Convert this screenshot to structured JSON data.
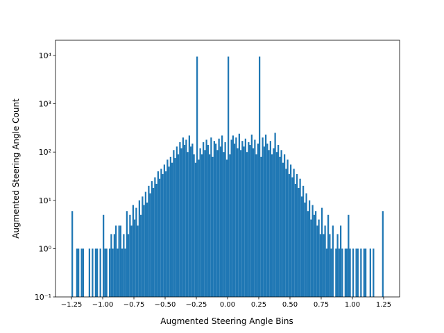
{
  "chart_data": {
    "type": "histogram",
    "xlabel": "Augmented Steering Angle Bins",
    "ylabel": "Augmented Steering Angle Count",
    "color": "#1f77b4",
    "log_scale_y": true,
    "bins": [
      -1.25,
      -1.2375,
      -1.225,
      -1.2125,
      -1.2,
      -1.1875,
      -1.175,
      -1.1625,
      -1.15,
      -1.1375,
      -1.125,
      -1.1125,
      -1.1,
      -1.0875,
      -1.075,
      -1.0625,
      -1.05,
      -1.0375,
      -1.025,
      -1.0125,
      -1,
      -0.9875,
      -0.975,
      -0.9625,
      -0.95,
      -0.9375,
      -0.925,
      -0.9125,
      -0.9,
      -0.8875,
      -0.875,
      -0.8625,
      -0.85,
      -0.8375,
      -0.825,
      -0.8125,
      -0.8,
      -0.7875,
      -0.775,
      -0.7625,
      -0.75,
      -0.7375,
      -0.725,
      -0.7125,
      -0.7,
      -0.6875,
      -0.675,
      -0.6625,
      -0.65,
      -0.6375,
      -0.625,
      -0.6125,
      -0.6,
      -0.5875,
      -0.575,
      -0.5625,
      -0.55,
      -0.5375,
      -0.525,
      -0.5125,
      -0.5,
      -0.4875,
      -0.475,
      -0.4625,
      -0.45,
      -0.4375,
      -0.425,
      -0.4125,
      -0.4,
      -0.3875,
      -0.375,
      -0.3625,
      -0.35,
      -0.3375,
      -0.325,
      -0.3125,
      -0.3,
      -0.2875,
      -0.275,
      -0.2625,
      -0.25,
      -0.2375,
      -0.225,
      -0.2125,
      -0.2,
      -0.1875,
      -0.175,
      -0.1625,
      -0.15,
      -0.1375,
      -0.125,
      -0.1125,
      -0.1,
      -0.0875,
      -0.075,
      -0.0625,
      -0.05,
      -0.0375,
      -0.025,
      -0.0125,
      0,
      0.0125,
      0.025,
      0.0375,
      0.05,
      0.0625,
      0.075,
      0.0875,
      0.1,
      0.1125,
      0.125,
      0.1375,
      0.15,
      0.1625,
      0.175,
      0.1875,
      0.2,
      0.2125,
      0.225,
      0.2375,
      0.25,
      0.2625,
      0.275,
      0.2875,
      0.3,
      0.3125,
      0.325,
      0.3375,
      0.35,
      0.3625,
      0.375,
      0.3875,
      0.4,
      0.4125,
      0.425,
      0.4375,
      0.45,
      0.4625,
      0.475,
      0.4875,
      0.5,
      0.5125,
      0.525,
      0.5375,
      0.55,
      0.5625,
      0.575,
      0.5875,
      0.6,
      0.6125,
      0.625,
      0.6375,
      0.65,
      0.6625,
      0.675,
      0.6875,
      0.7,
      0.7125,
      0.725,
      0.7375,
      0.75,
      0.7625,
      0.775,
      0.7875,
      0.8,
      0.8125,
      0.825,
      0.8375,
      0.85,
      0.8625,
      0.875,
      0.8875,
      0.9,
      0.9125,
      0.925,
      0.9375,
      0.95,
      0.9625,
      0.975,
      0.9875,
      1,
      1.0125,
      1.025,
      1.0375,
      1.05,
      1.0625,
      1.075,
      1.0875,
      1.1,
      1.1125,
      1.125,
      1.1375,
      1.15,
      1.1625,
      1.175,
      1.1875,
      1.2,
      1.2125,
      1.225,
      1.2375,
      1.25
    ],
    "values": [
      6,
      0,
      0,
      1,
      1,
      0,
      1,
      1,
      0,
      0,
      0,
      1,
      0,
      1,
      0,
      1,
      1,
      0,
      1,
      0,
      5,
      1,
      1,
      0,
      1,
      2,
      1,
      2,
      3,
      1,
      3,
      3,
      1,
      2,
      1,
      6,
      2,
      5,
      3,
      8,
      4,
      7,
      3,
      10,
      5,
      12,
      8,
      15,
      9,
      20,
      14,
      25,
      18,
      30,
      22,
      40,
      28,
      45,
      35,
      55,
      40,
      70,
      50,
      80,
      60,
      110,
      75,
      130,
      90,
      160,
      120,
      200,
      140,
      180,
      100,
      220,
      130,
      150,
      90,
      60,
      9500,
      70,
      120,
      90,
      160,
      110,
      180,
      140,
      90,
      200,
      80,
      170,
      150,
      110,
      190,
      130,
      220,
      100,
      160,
      70,
      9500,
      90,
      180,
      220,
      150,
      200,
      120,
      240,
      110,
      170,
      130,
      190,
      100,
      160,
      140,
      230,
      120,
      180,
      90,
      150,
      9500,
      80,
      200,
      130,
      230,
      150,
      110,
      170,
      90,
      120,
      250,
      100,
      140,
      80,
      110,
      60,
      90,
      45,
      70,
      35,
      55,
      30,
      45,
      22,
      35,
      18,
      28,
      12,
      20,
      9,
      14,
      6,
      10,
      4,
      8,
      5,
      6,
      3,
      4,
      2,
      7,
      2,
      3,
      1,
      5,
      2,
      1,
      3,
      0,
      1,
      2,
      1,
      3,
      1,
      0,
      1,
      1,
      5,
      1,
      0,
      1,
      0,
      1,
      1,
      0,
      1,
      0,
      1,
      1,
      0,
      0,
      1,
      0,
      1,
      0,
      0,
      0,
      0,
      0,
      6
    ],
    "xlim": [
      -1.378,
      1.378
    ],
    "ylim": [
      0.1,
      20700
    ],
    "xticks": [
      {
        "value": -1.25,
        "label": "−1.25"
      },
      {
        "value": -1,
        "label": "−1.00"
      },
      {
        "value": -0.75,
        "label": "−0.75"
      },
      {
        "value": -0.5,
        "label": "−0.50"
      },
      {
        "value": -0.25,
        "label": "−0.25"
      },
      {
        "value": 0,
        "label": "0.00"
      },
      0.25,
      {
        "value": 0.5,
        "label": "0.50"
      },
      0.75,
      {
        "value": 1,
        "label": "1.00"
      },
      1.25
    ],
    "yticks": [
      {
        "value": 0.1,
        "label": "10⁻¹"
      },
      {
        "value": 1,
        "label": "10⁰"
      },
      {
        "value": 10,
        "label": "10¹"
      },
      {
        "value": 100,
        "label": "10²"
      },
      {
        "value": 1000,
        "label": "10³"
      },
      {
        "value": 10000,
        "label": "10⁴"
      }
    ]
  }
}
